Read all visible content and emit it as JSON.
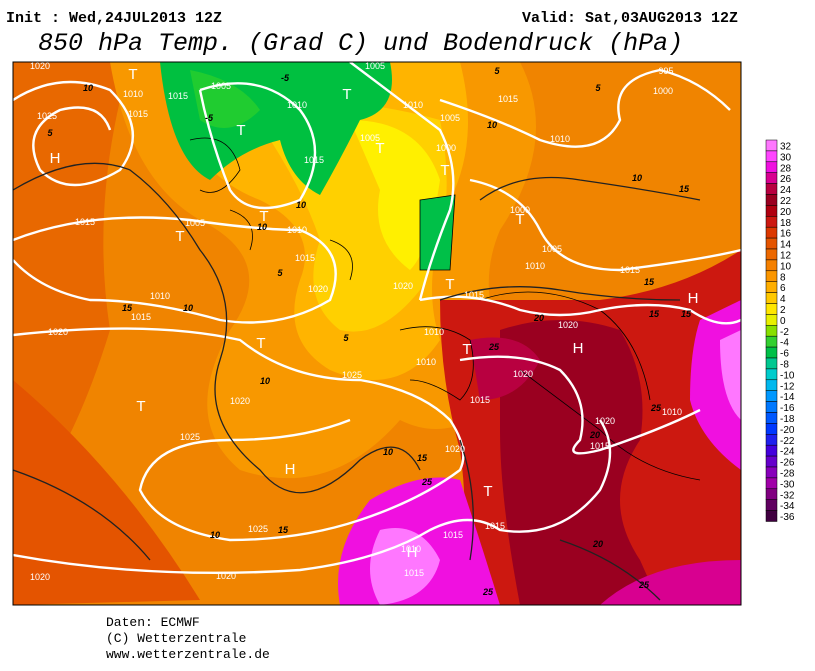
{
  "header": {
    "init": "Init : Wed,24JUL2013 12Z",
    "valid": "Valid: Sat,03AUG2013 12Z",
    "title": "850 hPa Temp. (Grad C) und Bodendruck (hPa)"
  },
  "colorbar": {
    "ticks": [
      32,
      30,
      28,
      26,
      24,
      22,
      20,
      18,
      16,
      14,
      12,
      10,
      8,
      6,
      4,
      2,
      0,
      -2,
      -4,
      -6,
      -8,
      -10,
      -12,
      -14,
      -16,
      -18,
      -20,
      -22,
      -24,
      -26,
      -28,
      -30,
      -32,
      -34,
      -36
    ],
    "colors": [
      "#ff77ff",
      "#ff44ff",
      "#f010e0",
      "#d80090",
      "#b80040",
      "#9a0020",
      "#b00010",
      "#cc1810",
      "#dc3800",
      "#e45400",
      "#ec6800",
      "#f58000",
      "#fb9600",
      "#ffae00",
      "#ffc800",
      "#ffe600",
      "#e8f000",
      "#88e000",
      "#33d030",
      "#00c048",
      "#00c890",
      "#00cccc",
      "#00b8ee",
      "#0098ff",
      "#0078ff",
      "#0058ff",
      "#0038ff",
      "#2020ee",
      "#4400dd",
      "#6600cc",
      "#8800bb",
      "#a000a8",
      "#800080",
      "#600060",
      "#400040"
    ]
  },
  "map": {
    "labels": [
      {
        "text": "1020",
        "kind": "isobar"
      },
      {
        "text": "1010",
        "kind": "isobar"
      },
      {
        "text": "1015",
        "kind": "isobar"
      },
      {
        "text": "1025",
        "kind": "isobar"
      },
      {
        "text": "1015",
        "kind": "isobar"
      },
      {
        "text": "1005",
        "kind": "isobar"
      },
      {
        "text": "1010",
        "kind": "isobar"
      },
      {
        "text": "1005",
        "kind": "isobar"
      },
      {
        "text": "1010",
        "kind": "isobar"
      },
      {
        "text": "1005",
        "kind": "isobar"
      },
      {
        "text": "1015",
        "kind": "isobar"
      },
      {
        "text": "995",
        "kind": "isobar"
      },
      {
        "text": "1000",
        "kind": "isobar"
      },
      {
        "text": "1010",
        "kind": "isobar"
      },
      {
        "text": "1000",
        "kind": "isobar"
      },
      {
        "text": "1015",
        "kind": "isobar"
      },
      {
        "text": "1005",
        "kind": "isobar"
      },
      {
        "text": "1015",
        "kind": "isobar"
      },
      {
        "text": "1005",
        "kind": "isobar"
      },
      {
        "text": "1010",
        "kind": "isobar"
      },
      {
        "text": "1015",
        "kind": "isobar"
      },
      {
        "text": "1020",
        "kind": "isobar"
      },
      {
        "text": "1010",
        "kind": "isobar"
      },
      {
        "text": "1015",
        "kind": "isobar"
      },
      {
        "text": "1020",
        "kind": "isobar"
      },
      {
        "text": "1020",
        "kind": "isobar"
      },
      {
        "text": "1015",
        "kind": "isobar"
      },
      {
        "text": "1010",
        "kind": "isobar"
      },
      {
        "text": "1010",
        "kind": "isobar"
      },
      {
        "text": "1020",
        "kind": "isobar"
      },
      {
        "text": "1020",
        "kind": "isobar"
      },
      {
        "text": "1015",
        "kind": "isobar"
      },
      {
        "text": "1025",
        "kind": "isobar"
      },
      {
        "text": "1020",
        "kind": "isobar"
      },
      {
        "text": "1025",
        "kind": "isobar"
      },
      {
        "text": "1020",
        "kind": "isobar"
      },
      {
        "text": "1015",
        "kind": "isobar"
      },
      {
        "text": "1020",
        "kind": "isobar"
      },
      {
        "text": "1010",
        "kind": "isobar"
      },
      {
        "text": "1015",
        "kind": "isobar"
      },
      {
        "text": "1005",
        "kind": "isobar"
      },
      {
        "text": "1010",
        "kind": "isobar"
      },
      {
        "text": "1000",
        "kind": "isobar"
      },
      {
        "text": "1020",
        "kind": "isobar"
      },
      {
        "text": "1020",
        "kind": "isobar"
      },
      {
        "text": "1025",
        "kind": "isobar"
      },
      {
        "text": "1015",
        "kind": "isobar"
      },
      {
        "text": "1015",
        "kind": "isobar"
      },
      {
        "text": "1015",
        "kind": "isobar"
      },
      {
        "text": "1010",
        "kind": "isobar"
      },
      {
        "text": "10",
        "kind": "isotherm"
      },
      {
        "text": "5",
        "kind": "isotherm"
      },
      {
        "text": "15",
        "kind": "isotherm"
      },
      {
        "text": "10",
        "kind": "isotherm"
      },
      {
        "text": "10",
        "kind": "isotherm"
      },
      {
        "text": "10",
        "kind": "isotherm"
      },
      {
        "text": "15",
        "kind": "isotherm"
      },
      {
        "text": "10",
        "kind": "isotherm"
      },
      {
        "text": "15",
        "kind": "isotherm"
      },
      {
        "text": "25",
        "kind": "isotherm"
      },
      {
        "text": "25",
        "kind": "isotherm"
      },
      {
        "text": "20",
        "kind": "isotherm"
      },
      {
        "text": "15",
        "kind": "isotherm"
      },
      {
        "text": "15",
        "kind": "isotherm"
      },
      {
        "text": "15",
        "kind": "isotherm"
      },
      {
        "text": "15",
        "kind": "isotherm"
      },
      {
        "text": "10",
        "kind": "isotherm"
      },
      {
        "text": "5",
        "kind": "isotherm"
      },
      {
        "text": "5",
        "kind": "isotherm"
      },
      {
        "text": "10",
        "kind": "isotherm"
      },
      {
        "text": "20",
        "kind": "isotherm"
      },
      {
        "text": "25",
        "kind": "isotherm"
      },
      {
        "text": "25",
        "kind": "isotherm"
      },
      {
        "text": "20",
        "kind": "isotherm"
      },
      {
        "text": "25",
        "kind": "isotherm"
      },
      {
        "text": "5",
        "kind": "isotherm"
      },
      {
        "text": "5",
        "kind": "isotherm"
      },
      {
        "text": "10",
        "kind": "isotherm"
      },
      {
        "text": "10",
        "kind": "isotherm"
      },
      {
        "text": "-5",
        "kind": "isotherm"
      },
      {
        "text": "-5",
        "kind": "isotherm"
      },
      {
        "text": "H",
        "kind": "center"
      },
      {
        "text": "T",
        "kind": "center"
      },
      {
        "text": "T",
        "kind": "center"
      },
      {
        "text": "T",
        "kind": "center"
      },
      {
        "text": "T",
        "kind": "center"
      },
      {
        "text": "T",
        "kind": "center"
      },
      {
        "text": "T",
        "kind": "center"
      },
      {
        "text": "T",
        "kind": "center"
      },
      {
        "text": "T",
        "kind": "center"
      },
      {
        "text": "T",
        "kind": "center"
      },
      {
        "text": "T",
        "kind": "center"
      },
      {
        "text": "T",
        "kind": "center"
      },
      {
        "text": "H",
        "kind": "center"
      },
      {
        "text": "H",
        "kind": "center"
      },
      {
        "text": "T",
        "kind": "center"
      },
      {
        "text": "H",
        "kind": "center"
      },
      {
        "text": "T",
        "kind": "center"
      },
      {
        "text": "H",
        "kind": "center"
      }
    ]
  },
  "footer": {
    "source": "Daten: ECMWF",
    "copyright": "(C) Wetterzentrale",
    "url": "www.wetterzentrale.de"
  }
}
